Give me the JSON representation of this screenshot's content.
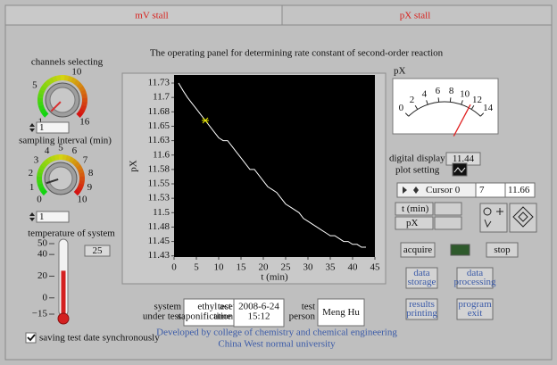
{
  "tabs": [
    "mV stall",
    "pX stall"
  ],
  "title": "The operating panel for determining rate constant of second-order reaction",
  "channels": {
    "label": "channels selecting",
    "ticks": [
      1,
      5,
      10,
      16
    ],
    "value": 1
  },
  "sampling": {
    "label": "sampling interval (min)",
    "ticks": [
      0,
      1,
      2,
      3,
      4,
      5,
      6,
      7,
      8,
      9,
      10
    ],
    "value": 1
  },
  "temperature": {
    "label": "temperature of system",
    "ticks": [
      50,
      40,
      20,
      0,
      {
        "value": -15,
        "label": "−15"
      }
    ],
    "value": 25
  },
  "saving": {
    "label": "saving test date synchronously",
    "checked": true
  },
  "chart_data": {
    "type": "line",
    "x_label": "t (min)",
    "y_label": "pX",
    "x": [
      1,
      2,
      3,
      4,
      5,
      6,
      7,
      8,
      9,
      10,
      11,
      12,
      13,
      14,
      15,
      16,
      17,
      18,
      19,
      20,
      21,
      22,
      23,
      24,
      25,
      26,
      27,
      28,
      29,
      30,
      31,
      32,
      33,
      34,
      35,
      36,
      37,
      38,
      39,
      40,
      41,
      42,
      43
    ],
    "values": [
      11.725,
      11.712,
      11.7,
      11.69,
      11.68,
      11.67,
      11.66,
      11.65,
      11.64,
      11.63,
      11.625,
      11.625,
      11.615,
      11.605,
      11.595,
      11.585,
      11.575,
      11.575,
      11.565,
      11.555,
      11.545,
      11.54,
      11.535,
      11.525,
      11.515,
      11.51,
      11.505,
      11.5,
      11.49,
      11.485,
      11.48,
      11.475,
      11.47,
      11.465,
      11.46,
      11.46,
      11.455,
      11.45,
      11.45,
      11.445,
      11.445,
      11.44,
      11.44
    ],
    "color": "#ffffff",
    "background": "#000000",
    "xlim": [
      0,
      45
    ],
    "xticks": [
      0,
      5,
      10,
      15,
      20,
      25,
      30,
      35,
      40,
      45
    ],
    "ylim": [
      11.423,
      11.739
    ],
    "yticks": [
      {
        "value": 11.725,
        "label": "11.73"
      },
      11.7,
      {
        "value": 11.675,
        "label": "11.68"
      },
      11.65,
      {
        "value": 11.625,
        "label": "11.63"
      },
      11.6,
      {
        "value": 11.575,
        "label": "11.58"
      },
      11.55,
      {
        "value": 11.525,
        "label": "11.53"
      },
      11.5,
      {
        "value": 11.475,
        "label": "11.48"
      },
      11.45,
      {
        "value": 11.425,
        "label": "11.43"
      }
    ],
    "cursor": {
      "name": "Cursor 0",
      "x": 7,
      "y": 11.66,
      "color": "#e8e800"
    }
  },
  "meter": {
    "label": "pX",
    "ticks": [
      0,
      2,
      4,
      6,
      8,
      10,
      12,
      14
    ],
    "value": 11.44,
    "display_label": "digital display"
  },
  "plot_setting": {
    "label": "plot setting",
    "x_axis": "t (min)",
    "y_axis": "pX"
  },
  "buttons": {
    "acquire": "acquire",
    "stop": "stop",
    "storage": [
      "data",
      "storage"
    ],
    "processing": [
      "data",
      "processing"
    ],
    "printing": [
      "results",
      "printing"
    ],
    "exit": [
      "program",
      "exit"
    ]
  },
  "info": {
    "system_label": [
      "system",
      "under test"
    ],
    "system": [
      "ethyl acetate",
      "saponification reaction"
    ],
    "time_label": [
      "test",
      "time"
    ],
    "time": [
      "2008-6-24",
      "15:12"
    ],
    "person_label": [
      "test",
      "person"
    ],
    "person": "Meng Hu"
  },
  "footer": [
    "Developed by college of chemistry and chemical engineering",
    "China West normal university"
  ]
}
